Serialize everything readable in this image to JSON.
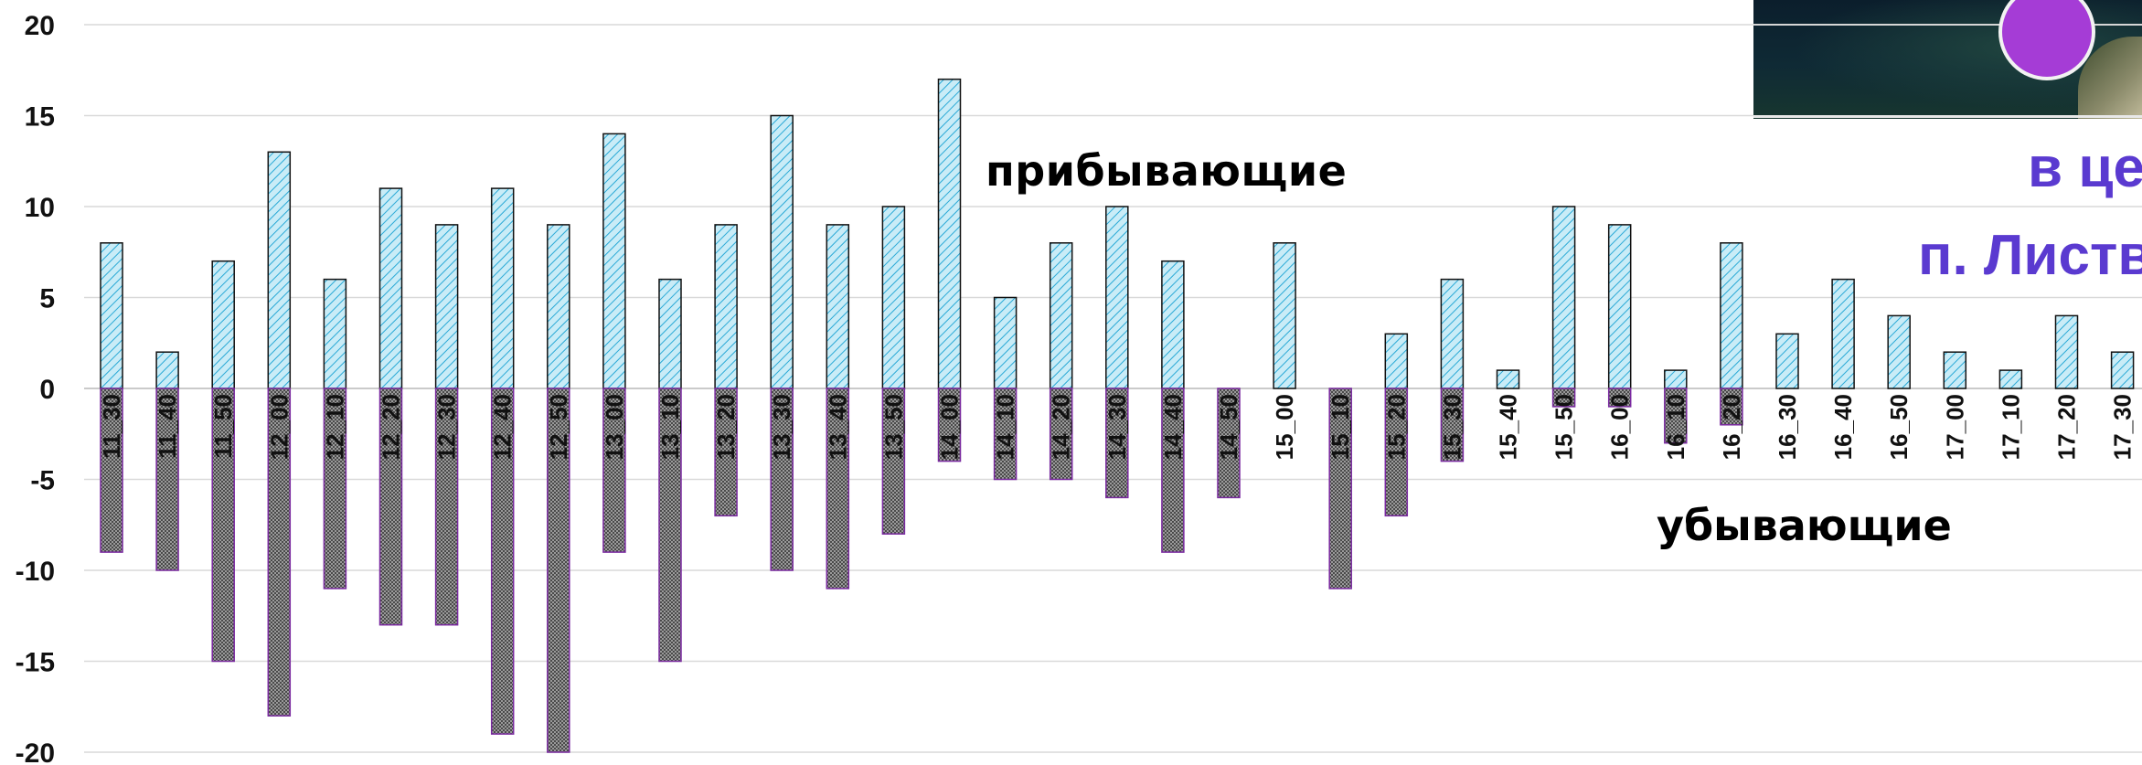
{
  "chart_data": {
    "type": "bar",
    "title": "",
    "xlabel": "",
    "ylabel": "",
    "ylim": [
      -20,
      20
    ],
    "yticks": [
      20,
      15,
      10,
      5,
      0,
      -5,
      -10,
      -15,
      -20
    ],
    "grid": true,
    "categories": [
      "11_30",
      "11_40",
      "11_50",
      "12_00",
      "12_10",
      "12_20",
      "12_30",
      "12_40",
      "12_50",
      "13_00",
      "13_10",
      "13_20",
      "13_30",
      "13_40",
      "13_50",
      "14_00",
      "14_10",
      "14_20",
      "14_30",
      "14_40",
      "14_50",
      "15_00",
      "15_10",
      "15_20",
      "15_30",
      "15_40",
      "15_50",
      "16_00",
      "16_10",
      "16_20",
      "16_30",
      "16_40",
      "16_50",
      "17_00",
      "17_10",
      "17_20",
      "17_30"
    ],
    "series": [
      {
        "name": "прибывающие",
        "values": [
          8,
          2,
          7,
          13,
          6,
          11,
          9,
          11,
          9,
          14,
          6,
          9,
          15,
          9,
          10,
          17,
          5,
          8,
          10,
          7,
          0,
          8,
          0,
          3,
          6,
          1,
          10,
          9,
          1,
          8,
          3,
          6,
          4,
          2,
          1,
          4,
          2
        ]
      },
      {
        "name": "убывающие",
        "values": [
          -9,
          -10,
          -15,
          -18,
          -11,
          -13,
          -13,
          -19,
          -20,
          -9,
          -15,
          -7,
          -10,
          -11,
          -8,
          -4,
          -5,
          -5,
          -6,
          -9,
          -6,
          0,
          -11,
          -7,
          -4,
          0,
          -1,
          -1,
          -3,
          -2,
          0,
          0,
          0,
          0,
          0,
          0,
          0
        ]
      }
    ]
  },
  "annotations": {
    "arriving": "прибывающие",
    "leaving": "убывающие"
  },
  "place": {
    "line1": "в це",
    "line2": "п. Листв"
  },
  "colors": {
    "arriving_fill": "#c9ecf7",
    "arriving_hatch": "#29a9d6",
    "leaving_fill": "#8f8f8f",
    "leaving_dark": "#555555",
    "leaving_border": "#7a2aa0",
    "place_text": "#5a3ad0"
  }
}
